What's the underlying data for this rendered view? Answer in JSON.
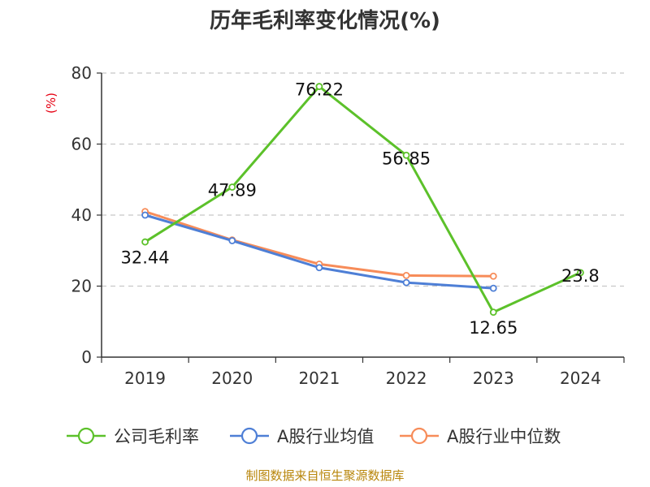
{
  "title": "历年毛利率变化情况(%)",
  "source": "制图数据来自恒生聚源数据库",
  "chart_data": {
    "type": "line",
    "title": "历年毛利率变化情况(%)",
    "unit_label": "(%)",
    "categories": [
      "2019",
      "2020",
      "2021",
      "2022",
      "2023",
      "2024"
    ],
    "y_ticks": [
      "0",
      "20",
      "40",
      "60",
      "80"
    ],
    "ylim": [
      0,
      80
    ],
    "grid": true,
    "legend_position": "bottom",
    "series": [
      {
        "name": "公司毛利率",
        "color": "#5cc12a",
        "values": [
          32.44,
          47.89,
          76.22,
          56.85,
          12.65,
          23.8
        ],
        "labels": [
          "32.44",
          "47.89",
          "76.22",
          "56.85",
          "12.65",
          "23.8"
        ]
      },
      {
        "name": "A股行业均值",
        "color": "#4e7fd6",
        "values": [
          40.0,
          32.8,
          25.2,
          21.0,
          19.4,
          null
        ]
      },
      {
        "name": "A股行业中位数",
        "color": "#f78c59",
        "values": [
          41.0,
          33.0,
          26.2,
          23.0,
          22.8,
          null
        ]
      }
    ]
  }
}
